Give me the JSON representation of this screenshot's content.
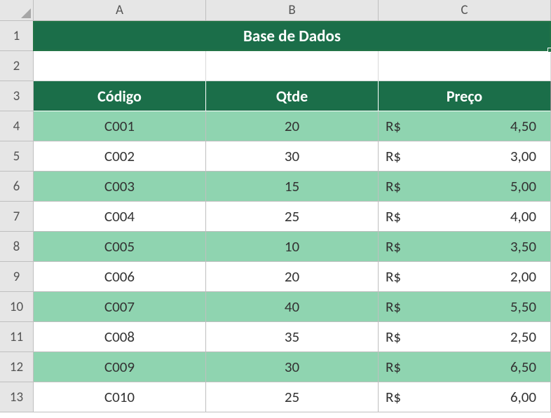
{
  "columns": [
    "A",
    "B",
    "C"
  ],
  "rowCount": 13,
  "mergedTitle": "Base de Dados",
  "headerRow": 3,
  "headers": [
    "Código",
    "Qtde",
    "Preço"
  ],
  "currencySymbol": "R$",
  "colors": {
    "headerBg": "#1b6e49",
    "headerText": "#ffffff",
    "stripe": "#8fd4b0",
    "noStripe": "#ffffff",
    "cellText": "#333333",
    "gridHeader": "#e6e6e6",
    "selectionBorder": "#217346"
  },
  "rows": [
    {
      "codigo": "C001",
      "qtde": "20",
      "preco": "4,50",
      "stripe": true
    },
    {
      "codigo": "C002",
      "qtde": "30",
      "preco": "3,00",
      "stripe": false
    },
    {
      "codigo": "C003",
      "qtde": "15",
      "preco": "5,00",
      "stripe": true
    },
    {
      "codigo": "C004",
      "qtde": "25",
      "preco": "4,00",
      "stripe": false
    },
    {
      "codigo": "C005",
      "qtde": "10",
      "preco": "3,50",
      "stripe": true
    },
    {
      "codigo": "C006",
      "qtde": "20",
      "preco": "2,00",
      "stripe": false
    },
    {
      "codigo": "C007",
      "qtde": "40",
      "preco": "5,50",
      "stripe": true
    },
    {
      "codigo": "C008",
      "qtde": "35",
      "preco": "2,50",
      "stripe": false
    },
    {
      "codigo": "C009",
      "qtde": "30",
      "preco": "6,50",
      "stripe": true
    },
    {
      "codigo": "C010",
      "qtde": "25",
      "preco": "6,00",
      "stripe": false
    }
  ]
}
